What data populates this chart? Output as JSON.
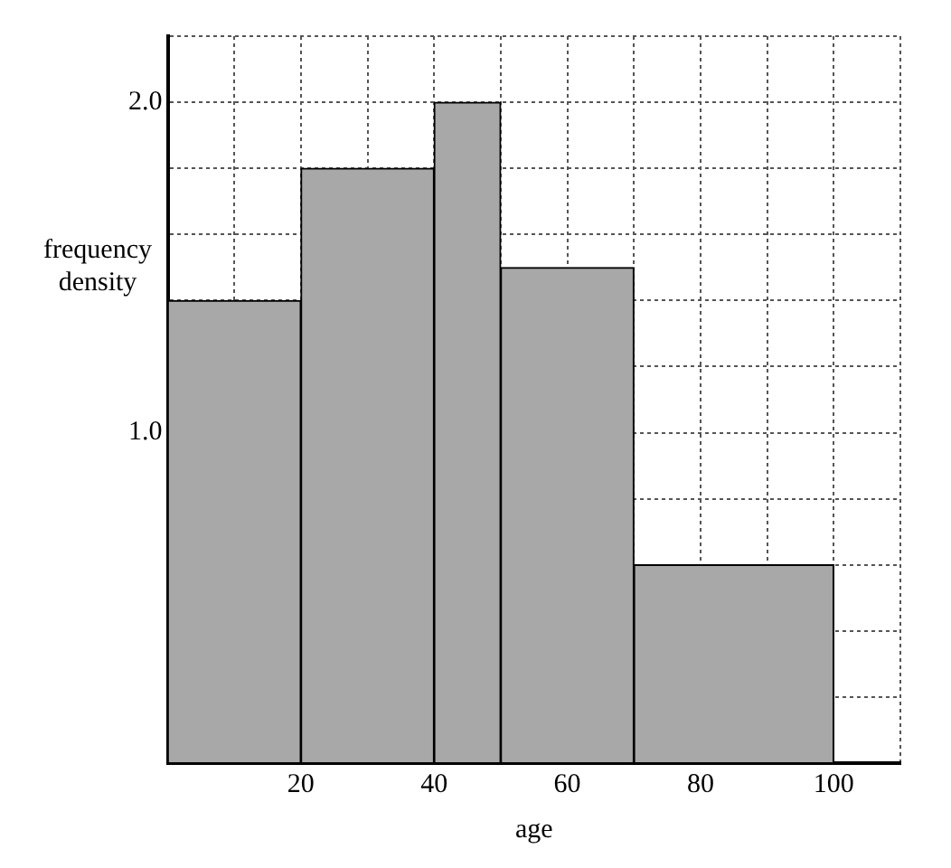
{
  "chart_data": {
    "type": "histogram",
    "xlabel": "age",
    "ylabel": "frequency density",
    "bins": [
      0,
      20,
      40,
      50,
      70,
      100
    ],
    "values": [
      1.4,
      1.8,
      2.0,
      1.5,
      0.6
    ],
    "color": "#a8a8a8",
    "xlim": [
      0,
      110
    ],
    "xticks": [
      {
        "value": 0,
        "label": null
      },
      {
        "value": 10,
        "label": null
      },
      20,
      {
        "value": 30,
        "label": null
      },
      40,
      {
        "value": 50,
        "label": null
      },
      60,
      {
        "value": 70,
        "label": null
      },
      80,
      {
        "value": 90,
        "label": null
      },
      100,
      {
        "value": 110,
        "label": null
      }
    ],
    "ylim": [
      0,
      2.2
    ],
    "yticks": [
      {
        "value": 0,
        "label": null
      },
      {
        "value": 0.2,
        "label": null
      },
      {
        "value": 0.4,
        "label": null
      },
      {
        "value": 0.6,
        "label": null
      },
      {
        "value": 0.8,
        "label": null
      },
      {
        "value": 1.0,
        "label": "1.0"
      },
      {
        "value": 1.2,
        "label": null
      },
      {
        "value": 1.4,
        "label": null
      },
      {
        "value": 1.6,
        "label": null
      },
      {
        "value": 1.8,
        "label": null
      },
      {
        "value": 2.0,
        "label": "2.0"
      },
      {
        "value": 2.2,
        "label": null
      }
    ],
    "grid": true,
    "legend": false
  }
}
